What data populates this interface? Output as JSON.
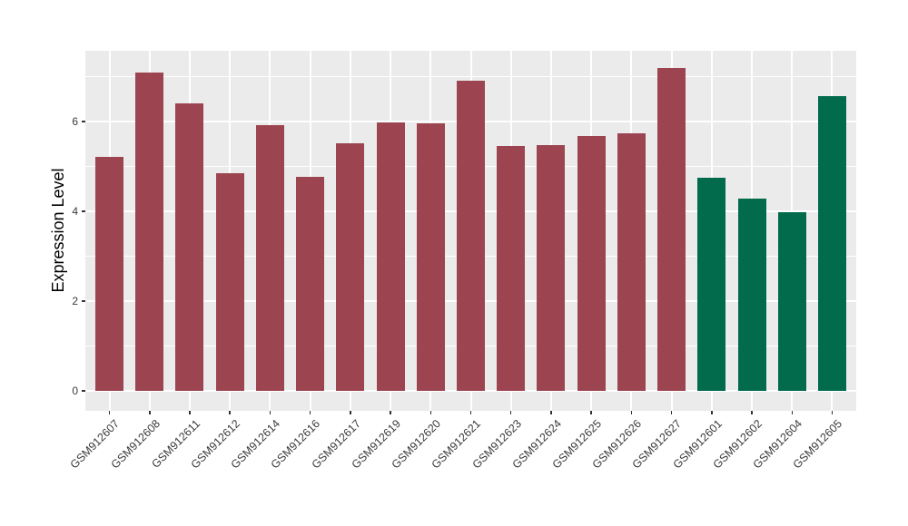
{
  "chart_data": {
    "type": "bar",
    "title": "",
    "xlabel": "",
    "ylabel": "Expression Level",
    "categories": [
      "GSM912607",
      "GSM912608",
      "GSM912611",
      "GSM912612",
      "GSM912614",
      "GSM912616",
      "GSM912617",
      "GSM912619",
      "GSM912620",
      "GSM912621",
      "GSM912623",
      "GSM912624",
      "GSM912625",
      "GSM912626",
      "GSM912627",
      "GSM912601",
      "GSM912602",
      "GSM912604",
      "GSM912605"
    ],
    "values": [
      5.21,
      7.1,
      6.4,
      4.86,
      5.93,
      4.77,
      5.51,
      5.98,
      5.96,
      6.92,
      5.46,
      5.48,
      5.69,
      5.74,
      7.19,
      4.75,
      4.28,
      3.98,
      6.57
    ],
    "bar_groups": [
      "a",
      "a",
      "a",
      "a",
      "a",
      "a",
      "a",
      "a",
      "a",
      "a",
      "a",
      "a",
      "a",
      "a",
      "a",
      "b",
      "b",
      "b",
      "b"
    ],
    "group_colors": {
      "a": "#9C4551",
      "b": "#016B4B"
    },
    "y_ticks": [
      0,
      2,
      4,
      6
    ],
    "y_minor_gridlines": [
      1,
      3,
      5,
      7
    ],
    "ylim": [
      -0.44,
      7.58
    ],
    "grid": true,
    "legend_position": "none",
    "panel_background": "#EBEBEB",
    "grid_color": "#FFFFFF",
    "tick_mark_color": "#333333",
    "axis_text_color": "#3A3A3A",
    "axis_title_color": "#000000"
  }
}
